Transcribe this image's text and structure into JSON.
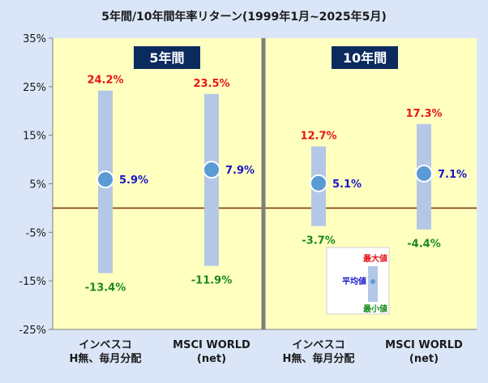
{
  "chart_data": {
    "type": "range",
    "title": "5年間/10年間年率リターン(1999年1月~2025年5月)",
    "ylim": [
      -25,
      35
    ],
    "yticks": [
      35,
      25,
      15,
      5,
      -5,
      -15,
      -25
    ],
    "ytick_labels": [
      "35%",
      "25%",
      "15%",
      "5%",
      "-5%",
      "-15%",
      "-25%"
    ],
    "panels": [
      {
        "label": "5年間",
        "series": [
          {
            "category": [
              "インベスコ",
              "H無、毎月分配"
            ],
            "max": 24.2,
            "avg": 5.9,
            "min": -13.4,
            "max_label": "24.2%",
            "avg_label": "5.9%",
            "min_label": "-13.4%"
          },
          {
            "category": [
              "MSCI WORLD",
              "(net)"
            ],
            "max": 23.5,
            "avg": 7.9,
            "min": -11.9,
            "max_label": "23.5%",
            "avg_label": "7.9%",
            "min_label": "-11.9%"
          }
        ]
      },
      {
        "label": "10年間",
        "series": [
          {
            "category": [
              "インベスコ",
              "H無、毎月分配"
            ],
            "max": 12.7,
            "avg": 5.1,
            "min": -3.7,
            "max_label": "12.7%",
            "avg_label": "5.1%",
            "min_label": "-3.7%"
          },
          {
            "category": [
              "MSCI WORLD",
              "(net)"
            ],
            "max": 17.3,
            "avg": 7.1,
            "min": -4.4,
            "max_label": "17.3%",
            "avg_label": "7.1%",
            "min_label": "-4.4%"
          }
        ]
      }
    ],
    "legend": {
      "max": "最大値",
      "avg": "平均値",
      "min": "最小値"
    },
    "colors": {
      "max": "#e8161b",
      "avg": "#1717c8",
      "min": "#1a8a1a",
      "bar": "#b4c7e7",
      "dot": "#5b9bd5",
      "plot_bg": "#ffffc0",
      "zero_line": "#7a3a14",
      "divider": "#7f7f7f",
      "panel_label_bg": "#0b2a5e"
    }
  }
}
